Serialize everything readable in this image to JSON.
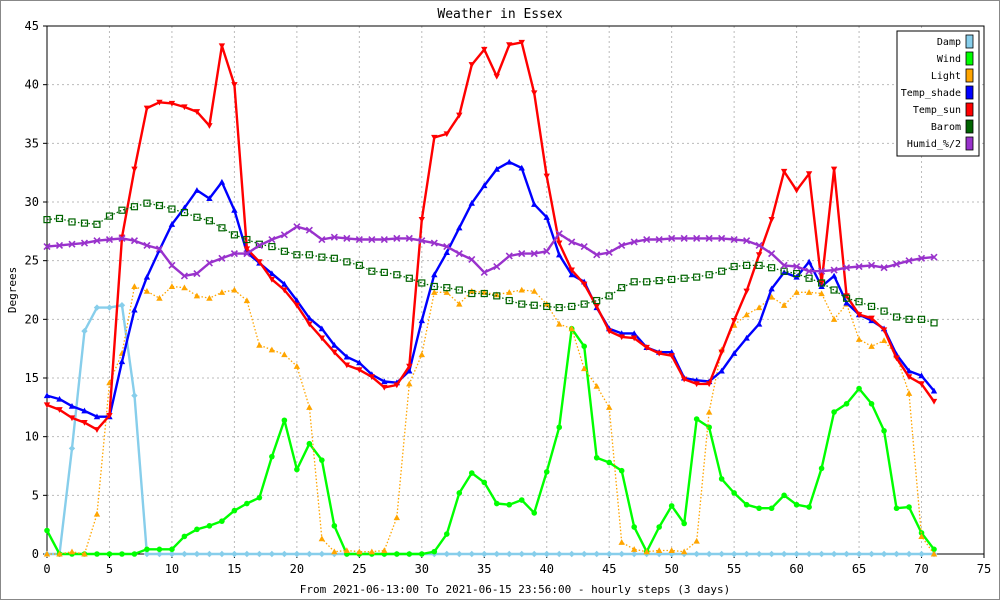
{
  "chart_data": {
    "type": "line",
    "title": "Weather in Essex",
    "xlabel": "From 2021-06-13:00 To 2021-06-15 23:56:00 - hourly steps (3 days)",
    "ylabel": "Degrees",
    "xlim": [
      0,
      75
    ],
    "ylim": [
      0,
      45
    ],
    "xticks": [
      0,
      5,
      10,
      15,
      20,
      25,
      30,
      35,
      40,
      45,
      50,
      55,
      60,
      65,
      70,
      75
    ],
    "yticks": [
      0,
      5,
      10,
      15,
      20,
      25,
      30,
      35,
      40,
      45
    ],
    "grid": true,
    "legend_position": "top-right",
    "series": [
      {
        "name": "Damp",
        "color": "#87ceeb",
        "marker": "diamond",
        "style": "solid",
        "x": [
          0,
          1,
          2,
          3,
          4,
          5,
          6,
          7,
          8,
          9,
          10,
          11,
          12,
          13,
          14,
          15,
          16,
          17,
          18,
          19,
          20,
          21,
          22,
          23,
          24,
          25,
          26,
          27,
          28,
          29,
          30,
          31,
          32,
          33,
          34,
          35,
          36,
          37,
          38,
          39,
          40,
          41,
          42,
          43,
          44,
          45,
          46,
          47,
          48,
          49,
          50,
          51,
          52,
          53,
          54,
          55,
          56,
          57,
          58,
          59,
          60,
          61,
          62,
          63,
          64,
          65,
          66,
          67,
          68,
          69,
          70,
          71
        ],
        "y": [
          0,
          0,
          9,
          19,
          21,
          21,
          21.2,
          13.5,
          0,
          0,
          0,
          0,
          0,
          0,
          0,
          0,
          0,
          0,
          0,
          0,
          0,
          0,
          0,
          0,
          0,
          0,
          0,
          0,
          0,
          0,
          0,
          0,
          0,
          0,
          0,
          0,
          0,
          0,
          0,
          0,
          0,
          0,
          0,
          0,
          0,
          0,
          0,
          0,
          0,
          0,
          0,
          0,
          0,
          0,
          0,
          0,
          0,
          0,
          0,
          0,
          0,
          0,
          0,
          0,
          0,
          0,
          0,
          0,
          0,
          0,
          0,
          0
        ]
      },
      {
        "name": "Wind",
        "color": "#00ff00",
        "marker": "circle",
        "style": "solid",
        "x": [
          0,
          1,
          2,
          3,
          4,
          5,
          6,
          7,
          8,
          9,
          10,
          11,
          12,
          13,
          14,
          15,
          16,
          17,
          18,
          19,
          20,
          21,
          22,
          23,
          24,
          25,
          26,
          27,
          28,
          29,
          30,
          31,
          32,
          33,
          34,
          35,
          36,
          37,
          38,
          39,
          40,
          41,
          42,
          43,
          44,
          45,
          46,
          47,
          48,
          49,
          50,
          51,
          52,
          53,
          54,
          55,
          56,
          57,
          58,
          59,
          60,
          61,
          62,
          63,
          64,
          65,
          66,
          67,
          68,
          69,
          70,
          71
        ],
        "y": [
          2,
          0,
          0,
          0,
          0,
          0,
          0,
          0,
          0.4,
          0.4,
          0.4,
          1.5,
          2.1,
          2.4,
          2.8,
          3.7,
          4.3,
          4.8,
          8.3,
          11.4,
          7.2,
          9.4,
          8,
          2.4,
          0,
          0,
          0,
          0,
          0,
          0,
          0,
          0.2,
          1.7,
          5.2,
          6.9,
          6.1,
          4.3,
          4.2,
          4.6,
          3.5,
          7,
          10.8,
          19.2,
          17.7,
          8.2,
          7.8,
          7.1,
          2.3,
          0.2,
          2.3,
          4.1,
          2.6,
          11.5,
          10.8,
          6.4,
          5.2,
          4.2,
          3.9,
          3.9,
          5,
          4.2,
          4,
          7.3,
          12.1,
          12.8,
          14.1,
          12.8,
          10.5,
          3.9,
          4,
          1.8,
          0.4
        ]
      },
      {
        "name": "Light",
        "color": "#ffa500",
        "marker": "triangle",
        "style": "dotted",
        "x": [
          0,
          1,
          2,
          3,
          4,
          5,
          6,
          7,
          8,
          9,
          10,
          11,
          12,
          13,
          14,
          15,
          16,
          17,
          18,
          19,
          20,
          21,
          22,
          23,
          24,
          25,
          26,
          27,
          28,
          29,
          30,
          31,
          32,
          33,
          34,
          35,
          36,
          37,
          38,
          39,
          40,
          41,
          42,
          43,
          44,
          45,
          46,
          47,
          48,
          49,
          50,
          51,
          52,
          53,
          54,
          55,
          56,
          57,
          58,
          59,
          60,
          61,
          62,
          63,
          64,
          65,
          66,
          67,
          68,
          69,
          70,
          71
        ],
        "y": [
          0,
          0,
          0.2,
          0,
          3.4,
          14.6,
          17.1,
          22.8,
          22.4,
          21.8,
          22.8,
          22.7,
          22,
          21.8,
          22.3,
          22.5,
          21.6,
          17.8,
          17.4,
          17,
          16,
          12.5,
          1.3,
          0.2,
          0.3,
          0.2,
          0.2,
          0.3,
          3.1,
          14.5,
          17,
          22.3,
          22.3,
          21.3,
          22.4,
          22.3,
          22.1,
          22.3,
          22.5,
          22.4,
          21.3,
          19.6,
          19.2,
          15.8,
          14.3,
          12.5,
          1,
          0.4,
          0.2,
          0.3,
          0.3,
          0.2,
          1.1,
          12.1,
          17.4,
          19.5,
          20.4,
          21,
          21.9,
          21.2,
          22.3,
          22.3,
          22.2,
          20,
          21.3,
          18.3,
          17.7,
          18.2,
          16.9,
          13.7,
          1.5,
          0
        ]
      },
      {
        "name": "Temp_shade",
        "color": "#0000ff",
        "marker": "triangle",
        "style": "solid",
        "x": [
          0,
          1,
          2,
          3,
          4,
          5,
          6,
          7,
          8,
          9,
          10,
          11,
          12,
          13,
          14,
          15,
          16,
          17,
          18,
          19,
          20,
          21,
          22,
          23,
          24,
          25,
          26,
          27,
          28,
          29,
          30,
          31,
          32,
          33,
          34,
          35,
          36,
          37,
          38,
          39,
          40,
          41,
          42,
          43,
          44,
          45,
          46,
          47,
          48,
          49,
          50,
          51,
          52,
          53,
          54,
          55,
          56,
          57,
          58,
          59,
          60,
          61,
          62,
          63,
          64,
          65,
          66,
          67,
          68,
          69,
          70,
          71
        ],
        "y": [
          13.5,
          13.2,
          12.6,
          12.2,
          11.7,
          11.7,
          16.4,
          20.8,
          23.6,
          25.9,
          28.1,
          29.5,
          31,
          30.3,
          31.7,
          29.3,
          25.7,
          24.8,
          23.9,
          23,
          21.6,
          20.1,
          19.2,
          17.8,
          16.8,
          16.3,
          15.3,
          14.7,
          14.6,
          15.6,
          19.9,
          23.8,
          25.7,
          27.8,
          29.9,
          31.4,
          32.8,
          33.4,
          32.9,
          29.8,
          28.7,
          25.5,
          23.8,
          23.2,
          21,
          19.2,
          18.8,
          18.8,
          17.6,
          17.2,
          17.2,
          15,
          14.8,
          14.7,
          15.6,
          17.1,
          18.4,
          19.6,
          22.6,
          24,
          23.6,
          24.9,
          22.8,
          23.7,
          21.4,
          20.4,
          19.9,
          19.2,
          17,
          15.6,
          15.2,
          13.9
        ]
      },
      {
        "name": "Temp_sun",
        "color": "#ff0000",
        "marker": "triangle-down",
        "style": "solid",
        "x": [
          0,
          1,
          2,
          3,
          4,
          5,
          6,
          7,
          8,
          9,
          10,
          11,
          12,
          13,
          14,
          15,
          16,
          17,
          18,
          19,
          20,
          21,
          22,
          23,
          24,
          25,
          26,
          27,
          28,
          29,
          30,
          31,
          32,
          33,
          34,
          35,
          36,
          37,
          38,
          39,
          40,
          41,
          42,
          43,
          44,
          45,
          46,
          47,
          48,
          49,
          50,
          51,
          52,
          53,
          54,
          55,
          56,
          57,
          58,
          59,
          60,
          61,
          62,
          63,
          64,
          65,
          66,
          67,
          68,
          69,
          70,
          71
        ],
        "y": [
          12.7,
          12.3,
          11.6,
          11.2,
          10.6,
          11.8,
          27,
          32.8,
          38,
          38.5,
          38.4,
          38.1,
          37.7,
          36.5,
          43.3,
          40,
          26,
          24.9,
          23.4,
          22.5,
          21.2,
          19.6,
          18.4,
          17.2,
          16.1,
          15.7,
          15.1,
          14.2,
          14.4,
          16,
          28.5,
          35.5,
          35.8,
          37.4,
          41.7,
          43,
          40.7,
          43.4,
          43.6,
          39.3,
          32.2,
          26.5,
          24.2,
          23,
          21.1,
          19,
          18.5,
          18.4,
          17.6,
          17.1,
          16.9,
          14.9,
          14.5,
          14.5,
          17.2,
          19.9,
          22.4,
          25.5,
          28.5,
          32.6,
          31,
          32.4,
          23.1,
          32.8,
          22,
          20.4,
          20.1,
          19.1,
          16.7,
          15.1,
          14.5,
          13
        ]
      },
      {
        "name": "Barom",
        "color": "#006400",
        "marker": "square",
        "style": "dotted",
        "x": [
          0,
          1,
          2,
          3,
          4,
          5,
          6,
          7,
          8,
          9,
          10,
          11,
          12,
          13,
          14,
          15,
          16,
          17,
          18,
          19,
          20,
          21,
          22,
          23,
          24,
          25,
          26,
          27,
          28,
          29,
          30,
          31,
          32,
          33,
          34,
          35,
          36,
          37,
          38,
          39,
          40,
          41,
          42,
          43,
          44,
          45,
          46,
          47,
          48,
          49,
          50,
          51,
          52,
          53,
          54,
          55,
          56,
          57,
          58,
          59,
          60,
          61,
          62,
          63,
          64,
          65,
          66,
          67,
          68,
          69,
          70,
          71
        ],
        "y": [
          28.5,
          28.6,
          28.3,
          28.2,
          28.1,
          28.8,
          29.3,
          29.6,
          29.9,
          29.7,
          29.4,
          29.1,
          28.7,
          28.4,
          27.8,
          27.2,
          26.8,
          26.4,
          26.2,
          25.8,
          25.5,
          25.5,
          25.3,
          25.2,
          24.9,
          24.6,
          24.1,
          24,
          23.8,
          23.5,
          23.1,
          22.8,
          22.7,
          22.5,
          22.2,
          22.2,
          22,
          21.6,
          21.3,
          21.2,
          21.1,
          21,
          21.1,
          21.3,
          21.6,
          22,
          22.7,
          23.2,
          23.2,
          23.3,
          23.4,
          23.5,
          23.6,
          23.8,
          24.1,
          24.5,
          24.6,
          24.6,
          24.4,
          24.1,
          23.9,
          23.5,
          23.1,
          22.5,
          21.8,
          21.5,
          21.1,
          20.7,
          20.2,
          20,
          20,
          19.7
        ]
      },
      {
        "name": "Humid_%/2",
        "color": "#9932cc",
        "marker": "x",
        "style": "solid",
        "x": [
          0,
          1,
          2,
          3,
          4,
          5,
          6,
          7,
          8,
          9,
          10,
          11,
          12,
          13,
          14,
          15,
          16,
          17,
          18,
          19,
          20,
          21,
          22,
          23,
          24,
          25,
          26,
          27,
          28,
          29,
          30,
          31,
          32,
          33,
          34,
          35,
          36,
          37,
          38,
          39,
          40,
          41,
          42,
          43,
          44,
          45,
          46,
          47,
          48,
          49,
          50,
          51,
          52,
          53,
          54,
          55,
          56,
          57,
          58,
          59,
          60,
          61,
          62,
          63,
          64,
          65,
          66,
          67,
          68,
          69,
          70,
          71
        ],
        "y": [
          26.2,
          26.3,
          26.4,
          26.5,
          26.7,
          26.8,
          26.9,
          26.7,
          26.3,
          26,
          24.6,
          23.7,
          23.9,
          24.8,
          25.2,
          25.6,
          25.6,
          26.3,
          26.8,
          27.2,
          27.9,
          27.6,
          26.8,
          27,
          26.9,
          26.8,
          26.8,
          26.8,
          26.9,
          26.9,
          26.7,
          26.5,
          26.2,
          25.6,
          25.1,
          24,
          24.5,
          25.4,
          25.6,
          25.6,
          25.8,
          27.3,
          26.6,
          26.2,
          25.5,
          25.7,
          26.3,
          26.6,
          26.8,
          26.8,
          26.9,
          26.9,
          26.9,
          26.9,
          26.9,
          26.8,
          26.7,
          26.3,
          25.6,
          24.6,
          24.5,
          24.1,
          24.1,
          24.2,
          24.4,
          24.5,
          24.6,
          24.4,
          24.7,
          25,
          25.2,
          25.3
        ]
      }
    ]
  }
}
